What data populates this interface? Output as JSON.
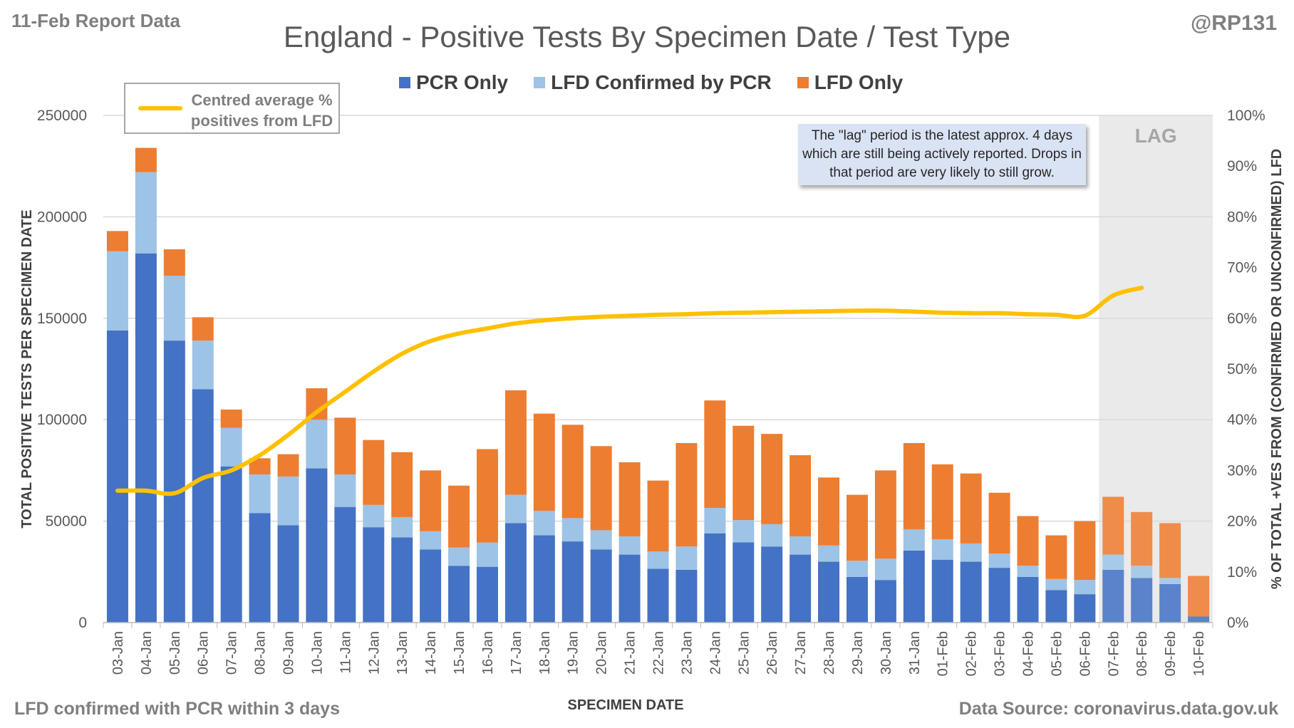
{
  "report_label": "11-Feb Report Data",
  "handle": "@RP131",
  "footnote": "LFD confirmed with PCR within 3 days",
  "source": "Data Source: coronavirus.data.gov.uk",
  "lag_note": "The \"lag\" period is the latest approx. 4 days which are still being actively reported. Drops in that period are very likely to still grow.",
  "colors": {
    "pcr": "#4472c4",
    "lfd_confirmed": "#9dc3e6",
    "lfd_only": "#ed7d31",
    "line": "#ffc000",
    "lag_shade": "#d9d9d9"
  },
  "chart_data": {
    "type": "bar",
    "stacked": true,
    "title": "England - Positive Tests By Specimen Date / Test Type",
    "xlabel": "SPECIMEN DATE",
    "ylabel": "TOTAL POSITIVE TESTS PER SPECIMEN DATE",
    "y2label": "% OF TOTAL +VES FROM (CONFIRMED OR UNCONFIRMED) LFD",
    "ylim": [
      0,
      250000
    ],
    "y_ticks": [
      "0",
      "50000",
      "100000",
      "150000",
      "200000",
      "250000"
    ],
    "y2lim": [
      0,
      100
    ],
    "y2_ticks": [
      "0%",
      "10%",
      "20%",
      "30%",
      "40%",
      "50%",
      "60%",
      "70%",
      "80%",
      "90%",
      "100%"
    ],
    "grid": true,
    "legend_position": "top",
    "lag_label": "LAG",
    "lag_categories": [
      "07-Feb",
      "08-Feb",
      "09-Feb",
      "10-Feb"
    ],
    "categories": [
      "03-Jan",
      "04-Jan",
      "05-Jan",
      "06-Jan",
      "07-Jan",
      "08-Jan",
      "09-Jan",
      "10-Jan",
      "11-Jan",
      "12-Jan",
      "13-Jan",
      "14-Jan",
      "15-Jan",
      "16-Jan",
      "17-Jan",
      "18-Jan",
      "19-Jan",
      "20-Jan",
      "21-Jan",
      "22-Jan",
      "23-Jan",
      "24-Jan",
      "25-Jan",
      "26-Jan",
      "27-Jan",
      "28-Jan",
      "29-Jan",
      "30-Jan",
      "31-Jan",
      "01-Feb",
      "02-Feb",
      "03-Feb",
      "04-Feb",
      "05-Feb",
      "06-Feb",
      "07-Feb",
      "08-Feb",
      "09-Feb",
      "10-Feb"
    ],
    "series": [
      {
        "name": "PCR Only",
        "values": [
          144000,
          182000,
          139000,
          115000,
          77000,
          54000,
          48000,
          76000,
          57000,
          47000,
          42000,
          36000,
          28000,
          27500,
          49000,
          43000,
          40000,
          36000,
          33500,
          26500,
          26000,
          44000,
          39500,
          37500,
          33500,
          30000,
          22500,
          21000,
          35500,
          31000,
          30000,
          27000,
          22500,
          16000,
          14000,
          26000,
          22000,
          19000,
          3000
        ]
      },
      {
        "name": "LFD Confirmed by PCR",
        "values": [
          39000,
          40000,
          32000,
          24000,
          19000,
          19000,
          24000,
          24000,
          16000,
          11000,
          10000,
          9000,
          9000,
          12000,
          14000,
          12000,
          11500,
          9500,
          9000,
          8500,
          11500,
          12500,
          11000,
          11000,
          9000,
          8000,
          8000,
          10500,
          10500,
          10000,
          9000,
          7000,
          5500,
          5500,
          7000,
          7500,
          6000,
          3000,
          0
        ]
      },
      {
        "name": "LFD Only",
        "values": [
          10000,
          12000,
          13000,
          11500,
          9000,
          8000,
          11000,
          15500,
          28000,
          32000,
          32000,
          30000,
          30500,
          46000,
          51500,
          48000,
          46000,
          41500,
          36500,
          35000,
          51000,
          53000,
          46500,
          44500,
          40000,
          33500,
          32500,
          43500,
          42500,
          37000,
          34500,
          30000,
          24500,
          21500,
          29000,
          28500,
          26500,
          27000,
          20000
        ]
      },
      {
        "name": "Centred average % positives from LFD",
        "axis": "secondary",
        "values": [
          26,
          26,
          25.5,
          28.5,
          30,
          33,
          37,
          41.5,
          45.5,
          49.5,
          53,
          55.5,
          57,
          58,
          59,
          59.6,
          60,
          60.3,
          60.5,
          60.7,
          60.8,
          61,
          61.1,
          61.2,
          61.3,
          61.4,
          61.5,
          61.5,
          61.3,
          61.1,
          61,
          61,
          60.8,
          60.7,
          60.5,
          64.5,
          66,
          null,
          null
        ]
      }
    ]
  }
}
